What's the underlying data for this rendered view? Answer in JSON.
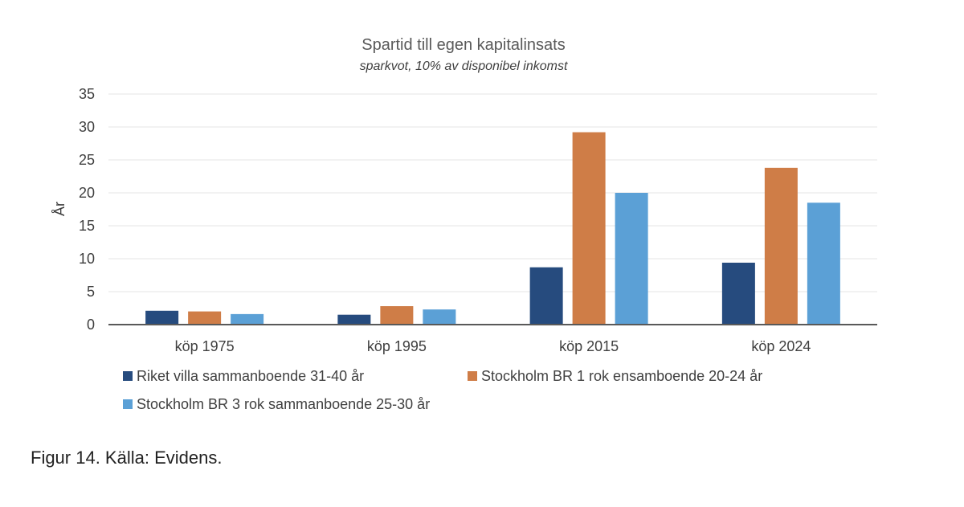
{
  "chart_data": {
    "type": "bar",
    "title": "Spartid till egen kapitalinsats",
    "subtitle": "sparkvot, 10% av disponibel inkomst",
    "xlabel": "",
    "ylabel": "År",
    "ylim": [
      0,
      35
    ],
    "yticks": [
      0,
      5,
      10,
      15,
      20,
      25,
      30,
      35
    ],
    "grid": true,
    "legend_position": "bottom",
    "categories": [
      "köp 1975",
      "köp 1995",
      "köp 2015",
      "köp 2024"
    ],
    "series": [
      {
        "name": "Riket villa sammanboende 31-40 år",
        "color": "#264b7e",
        "values": [
          2.1,
          1.5,
          8.7,
          9.4
        ]
      },
      {
        "name": "Stockholm BR 1 rok ensamboende 20-24 år",
        "color": "#cf7d47",
        "values": [
          2.0,
          2.8,
          29.2,
          23.8
        ]
      },
      {
        "name": "Stockholm BR 3 rok sammanboende 25-30 år",
        "color": "#5ba0d6",
        "values": [
          1.6,
          2.3,
          20.0,
          18.5
        ]
      }
    ]
  },
  "caption": "Figur 14. Källa: Evidens."
}
